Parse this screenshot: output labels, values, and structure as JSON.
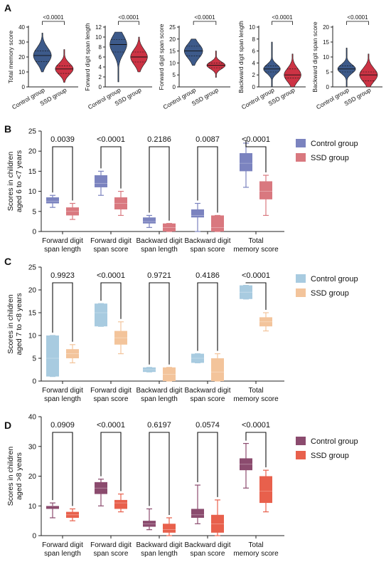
{
  "panel_labels": [
    "A",
    "B",
    "C",
    "D"
  ],
  "colors": {
    "control_dark_blue": "#3d5a8a",
    "ssd_red": "#cc3344",
    "b_control": "#7b83bf",
    "b_ssd": "#d9787f",
    "c_control": "#a8cbe0",
    "c_ssd": "#f3c49b",
    "d_control": "#8b4b6e",
    "d_ssd": "#e8604c"
  },
  "chart_data": [
    {
      "panel": "A",
      "type": "violin",
      "categories": [
        "Control group",
        "SSD group"
      ],
      "subplots": [
        {
          "ylabel": "Total memory score",
          "ylim": [
            0,
            40
          ],
          "yticks": [
            0,
            10,
            20,
            30,
            40
          ],
          "pvalue": "<0.0001",
          "series": [
            {
              "group": "Control group",
              "min": 10,
              "q1": 17,
              "median": 21,
              "q3": 24,
              "max": 36
            },
            {
              "group": "SSD group",
              "min": 3,
              "q1": 9,
              "median": 12,
              "q3": 14,
              "max": 25
            }
          ]
        },
        {
          "ylabel": "Forward digit span length",
          "ylim": [
            0,
            12
          ],
          "yticks": [
            0,
            2,
            4,
            6,
            8,
            10,
            12
          ],
          "pvalue": "<0.0001",
          "series": [
            {
              "group": "Control group",
              "min": 1,
              "q1": 7,
              "median": 8.5,
              "q3": 9.5,
              "max": 11
            },
            {
              "group": "SSD group",
              "min": 3,
              "q1": 5,
              "median": 6,
              "q3": 7,
              "max": 10
            }
          ]
        },
        {
          "ylabel": "Forward digit span score",
          "ylim": [
            0,
            25
          ],
          "yticks": [
            0,
            5,
            10,
            15,
            20,
            25
          ],
          "pvalue": "<0.0001",
          "series": [
            {
              "group": "Control group",
              "min": 9,
              "q1": 13,
              "median": 15,
              "q3": 17,
              "max": 20
            },
            {
              "group": "SSD group",
              "min": 4,
              "q1": 8,
              "median": 9,
              "q3": 10,
              "max": 15
            }
          ]
        },
        {
          "ylabel": "Backward digit span length",
          "ylim": [
            0,
            10
          ],
          "yticks": [
            0,
            2,
            4,
            6,
            8,
            10
          ],
          "pvalue": "<0.0001",
          "series": [
            {
              "group": "Control group",
              "min": 0,
              "q1": 2.5,
              "median": 3,
              "q3": 3.5,
              "max": 7.5
            },
            {
              "group": "SSD group",
              "min": 0,
              "q1": 1.5,
              "median": 2,
              "q3": 3,
              "max": 5.5
            }
          ]
        },
        {
          "ylabel": "Backward digit span score",
          "ylim": [
            0,
            20
          ],
          "yticks": [
            0,
            5,
            10,
            15,
            20
          ],
          "pvalue": "<0.0001",
          "series": [
            {
              "group": "Control group",
              "min": 0,
              "q1": 5,
              "median": 6,
              "q3": 7,
              "max": 13
            },
            {
              "group": "SSD group",
              "min": 0,
              "q1": 2,
              "median": 4,
              "q3": 5,
              "max": 11
            }
          ]
        }
      ]
    },
    {
      "panel": "B",
      "type": "box",
      "ylabel": "Scores in children aged 6 to <7 years",
      "ylabel_lines": [
        "Scores in children",
        "aged 6 to <7 years"
      ],
      "ylim": [
        0,
        25
      ],
      "yticks": [
        0,
        5,
        10,
        15,
        20,
        25
      ],
      "categories": [
        "Forward digit span length",
        "Forward digit span score",
        "Backward digit span length",
        "Backward digit span score",
        "Total memory score"
      ],
      "category_lines": [
        [
          "Forward digit",
          "span length"
        ],
        [
          "Forward digit",
          "span score"
        ],
        [
          "Backward digit",
          "span length"
        ],
        [
          "Backward digit",
          "span score"
        ],
        [
          "Total",
          "memory score"
        ]
      ],
      "legend": [
        "Control group",
        "SSD group"
      ],
      "pvalues": [
        "0.0039",
        "<0.0001",
        "0.2186",
        "0.0087",
        "<0.0001"
      ],
      "series": [
        {
          "name": "Control group",
          "boxes": [
            [
              6,
              7,
              7.5,
              8.5,
              9
            ],
            [
              9,
              11,
              12,
              14,
              15
            ],
            [
              1,
              2,
              2.5,
              3.5,
              4
            ],
            [
              0,
              3.5,
              4,
              5.5,
              7
            ],
            [
              11,
              15,
              17,
              19.5,
              22
            ]
          ]
        },
        {
          "name": "SSD group",
          "boxes": [
            [
              3,
              4,
              5,
              6,
              7
            ],
            [
              4,
              5.5,
              7,
              8.5,
              10
            ],
            [
              0,
              0,
              1,
              2,
              2
            ],
            [
              0,
              0,
              1,
              4,
              4
            ],
            [
              4,
              8,
              10,
              12.5,
              14
            ]
          ]
        }
      ]
    },
    {
      "panel": "C",
      "type": "box",
      "ylabel": "Scores in children aged 7 to <8 years",
      "ylabel_lines": [
        "Scores in children",
        "aged 7 to <8 years"
      ],
      "ylim": [
        0,
        25
      ],
      "yticks": [
        0,
        5,
        10,
        15,
        20,
        25
      ],
      "categories": [
        "Forward digit span length",
        "Forward digit span score",
        "Backward digit span length",
        "Backward digit span score",
        "Total memory score"
      ],
      "category_lines": [
        [
          "Forward digit",
          "span length"
        ],
        [
          "Forward digit",
          "span score"
        ],
        [
          "Backward digit",
          "span length"
        ],
        [
          "Backward digit",
          "span score"
        ],
        [
          "Total",
          "memory score"
        ]
      ],
      "legend": [
        "Control group",
        "SSD group"
      ],
      "pvalues": [
        "0.9923",
        "<0.0001",
        "0.9721",
        "0.4186",
        "<0.0001"
      ],
      "series": [
        {
          "name": "Control group",
          "boxes": [
            [
              1,
              1,
              5,
              10,
              10
            ],
            [
              12,
              12,
              15,
              17,
              17
            ],
            [
              2,
              2,
              2.5,
              3,
              3
            ],
            [
              4,
              4,
              5,
              6,
              6
            ],
            [
              18,
              18,
              19.5,
              21,
              21
            ]
          ]
        },
        {
          "name": "SSD group",
          "boxes": [
            [
              4,
              5,
              6,
              7,
              8
            ],
            [
              6,
              8,
              9.5,
              11,
              13
            ],
            [
              0,
              0,
              1.5,
              3,
              3
            ],
            [
              0,
              0,
              2,
              5,
              6
            ],
            [
              11,
              12,
              13,
              14,
              15
            ]
          ]
        }
      ]
    },
    {
      "panel": "D",
      "type": "box",
      "ylabel": "Scores in children aged >8 years",
      "ylabel_lines": [
        "Scores in children",
        "aged >8 years"
      ],
      "ylim": [
        0,
        40
      ],
      "yticks": [
        0,
        10,
        20,
        30,
        40
      ],
      "categories": [
        "Forward digit span length",
        "Forward digit span score",
        "Backward digit span length",
        "Backward digit span score",
        "Total memory score"
      ],
      "category_lines": [
        [
          "Forward digit",
          "span length"
        ],
        [
          "Forward digit",
          "span score"
        ],
        [
          "Backward digit",
          "span length"
        ],
        [
          "Backward digit",
          "span score"
        ],
        [
          "Total",
          "memory score"
        ]
      ],
      "legend": [
        "Control group",
        "SSD group"
      ],
      "pvalues": [
        "0.0909",
        "<0.0001",
        "0.6197",
        "0.0574",
        "<0.0001"
      ],
      "series": [
        {
          "name": "Control group",
          "boxes": [
            [
              6,
              9,
              10,
              10,
              11
            ],
            [
              10,
              14,
              16,
              18,
              19
            ],
            [
              2,
              3,
              4,
              5,
              9
            ],
            [
              4,
              6,
              7,
              9,
              17
            ],
            [
              16,
              22,
              24,
              26,
              31
            ]
          ]
        },
        {
          "name": "SSD group",
          "boxes": [
            [
              5,
              6,
              7,
              8,
              9
            ],
            [
              8,
              9,
              11,
              12,
              14
            ],
            [
              0,
              1,
              2,
              4,
              6
            ],
            [
              0,
              1,
              4,
              7,
              12
            ],
            [
              8,
              11,
              15,
              20,
              22
            ]
          ]
        }
      ]
    }
  ]
}
